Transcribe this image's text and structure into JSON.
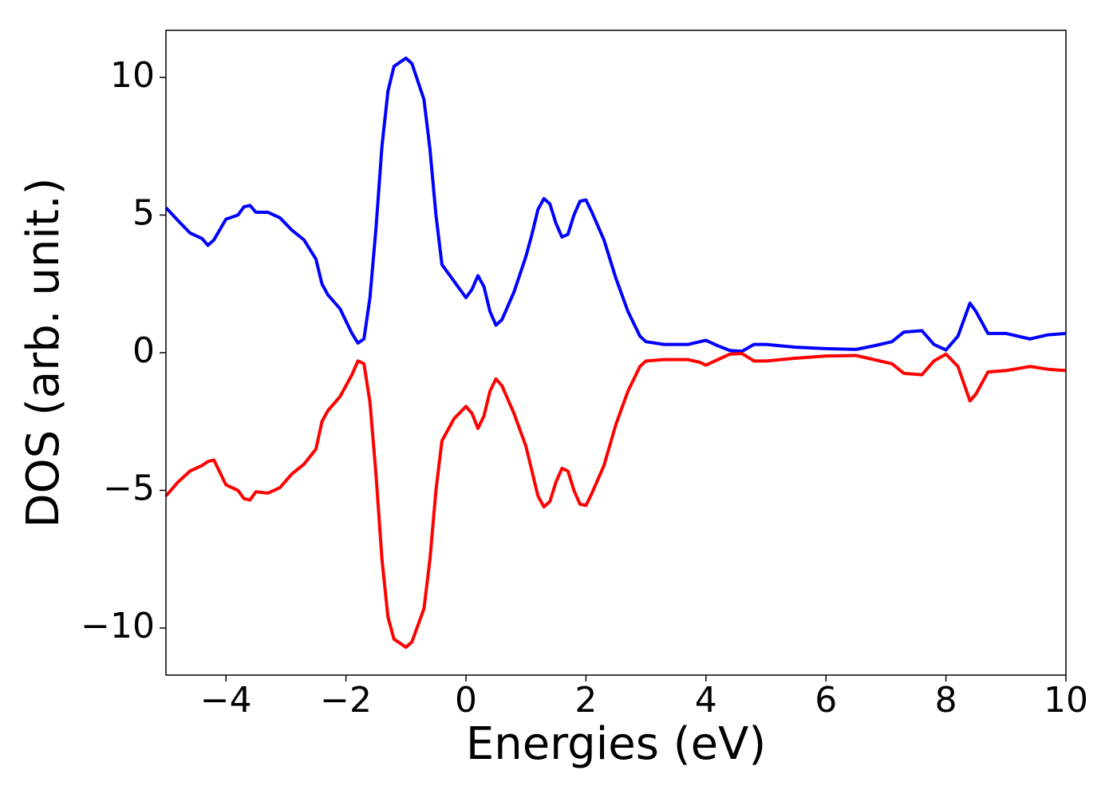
{
  "chart_data": {
    "type": "line",
    "xlabel": "Energies (eV)",
    "ylabel": "DOS (arb. unit.)",
    "x": [
      -5,
      -4.8,
      -4.6,
      -4.4,
      -4.3,
      -4.2,
      -4,
      -3.8,
      -3.7,
      -3.6,
      -3.5,
      -3.3,
      -3.1,
      -2.9,
      -2.7,
      -2.5,
      -2.4,
      -2.3,
      -2.1,
      -1.9,
      -1.8,
      -1.7,
      -1.6,
      -1.5,
      -1.4,
      -1.3,
      -1.2,
      -1,
      -0.9,
      -0.7,
      -0.6,
      -0.5,
      -0.4,
      -0.2,
      0,
      0.1,
      0.2,
      0.3,
      0.4,
      0.5,
      0.6,
      0.8,
      1,
      1.1,
      1.2,
      1.3,
      1.4,
      1.5,
      1.6,
      1.7,
      1.8,
      1.9,
      2,
      2.1,
      2.3,
      2.5,
      2.7,
      2.9,
      3,
      3.3,
      3.7,
      3.9,
      4,
      4.2,
      4.4,
      4.6,
      4.8,
      5,
      5.5,
      6,
      6.5,
      6.8,
      7.1,
      7.3,
      7.6,
      7.8,
      8,
      8.2,
      8.4,
      8.5,
      8.7,
      9,
      9.4,
      9.7,
      10
    ],
    "series": [
      {
        "color": "#0000ff",
        "values": [
          5.27,
          4.8,
          4.35,
          4.15,
          3.9,
          4.1,
          4.85,
          5.0,
          5.3,
          5.35,
          5.1,
          5.1,
          4.9,
          4.45,
          4.1,
          3.4,
          2.5,
          2.1,
          1.6,
          0.7,
          0.35,
          0.5,
          2.0,
          4.5,
          7.5,
          9.5,
          10.4,
          10.7,
          10.5,
          9.2,
          7.4,
          5.0,
          3.2,
          2.6,
          2.0,
          2.3,
          2.8,
          2.4,
          1.5,
          1.0,
          1.2,
          2.2,
          3.5,
          4.3,
          5.2,
          5.6,
          5.4,
          4.7,
          4.2,
          4.3,
          5.0,
          5.5,
          5.55,
          5.1,
          4.1,
          2.7,
          1.5,
          0.6,
          0.4,
          0.3,
          0.3,
          0.4,
          0.45,
          0.25,
          0.08,
          0.05,
          0.3,
          0.3,
          0.2,
          0.15,
          0.12,
          0.25,
          0.4,
          0.75,
          0.8,
          0.3,
          0.1,
          0.6,
          1.8,
          1.5,
          0.7,
          0.7,
          0.5,
          0.65,
          0.7
        ]
      },
      {
        "color": "#ff0000",
        "values": [
          -5.2,
          -4.7,
          -4.3,
          -4.1,
          -3.95,
          -3.9,
          -4.8,
          -5.0,
          -5.3,
          -5.35,
          -5.05,
          -5.1,
          -4.9,
          -4.4,
          -4.05,
          -3.5,
          -2.5,
          -2.1,
          -1.6,
          -0.8,
          -0.3,
          -0.4,
          -1.8,
          -4.4,
          -7.5,
          -9.6,
          -10.4,
          -10.7,
          -10.5,
          -9.3,
          -7.5,
          -5.0,
          -3.2,
          -2.4,
          -1.95,
          -2.2,
          -2.75,
          -2.3,
          -1.4,
          -0.95,
          -1.2,
          -2.2,
          -3.4,
          -4.3,
          -5.2,
          -5.6,
          -5.4,
          -4.7,
          -4.2,
          -4.3,
          -5.0,
          -5.5,
          -5.55,
          -5.1,
          -4.1,
          -2.6,
          -1.4,
          -0.5,
          -0.3,
          -0.25,
          -0.25,
          -0.35,
          -0.45,
          -0.25,
          -0.05,
          -0.03,
          -0.3,
          -0.3,
          -0.2,
          -0.12,
          -0.1,
          -0.25,
          -0.4,
          -0.75,
          -0.8,
          -0.3,
          -0.05,
          -0.5,
          -1.75,
          -1.5,
          -0.7,
          -0.65,
          -0.5,
          -0.6,
          -0.65
        ]
      }
    ],
    "xlim": [
      -5,
      10
    ],
    "xticks": [
      {
        "value": -4,
        "label": "−4"
      },
      {
        "value": -2,
        "label": "−2"
      },
      0,
      2,
      4,
      6,
      8,
      10
    ],
    "ylim": [
      -11.71,
      11.71
    ],
    "yticks": [
      {
        "value": -10,
        "label": "−10"
      },
      {
        "value": -5,
        "label": "−5"
      },
      0,
      5,
      10
    ],
    "grid": false
  }
}
